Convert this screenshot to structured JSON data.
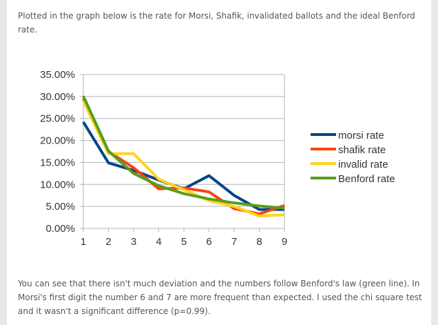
{
  "intro": "Plotted in the graph below is the rate for Morsi, Shafik, invalidated ballots and the ideal Benford rate.",
  "conclusion": "You can see that there isn't much deviation and the numbers follow Benford's law (green line). In Morsi's first digit the number 6 and 7 are more frequent than expected. I used the chi square test and it wasn't a significant difference (p=0.99).",
  "chart_data": {
    "type": "line",
    "title": "",
    "xlabel": "",
    "ylabel": "",
    "x": [
      1,
      2,
      3,
      4,
      5,
      6,
      7,
      8,
      9
    ],
    "ylim": [
      0,
      0.35
    ],
    "y_ticks": [
      "0.00%",
      "5.00%",
      "10.00%",
      "15.00%",
      "20.00%",
      "25.00%",
      "30.00%",
      "35.00%"
    ],
    "x_ticks": [
      "1",
      "2",
      "3",
      "4",
      "5",
      "6",
      "7",
      "8",
      "9"
    ],
    "grid": true,
    "legend_placement": "right",
    "series": [
      {
        "name": "morsi rate",
        "color": "#004586",
        "values": [
          0.242,
          0.149,
          0.132,
          0.11,
          0.09,
          0.12,
          0.075,
          0.043,
          0.043
        ]
      },
      {
        "name": "shafik rate",
        "color": "#ff420e",
        "values": [
          0.295,
          0.175,
          0.138,
          0.09,
          0.092,
          0.083,
          0.045,
          0.033,
          0.052
        ]
      },
      {
        "name": "invalid rate",
        "color": "#ffd320",
        "values": [
          0.29,
          0.17,
          0.17,
          0.112,
          0.088,
          0.063,
          0.05,
          0.028,
          0.031
        ]
      },
      {
        "name": "Benford rate",
        "color": "#579d1c",
        "values": [
          0.301,
          0.176,
          0.125,
          0.097,
          0.079,
          0.067,
          0.058,
          0.051,
          0.046
        ]
      }
    ]
  }
}
